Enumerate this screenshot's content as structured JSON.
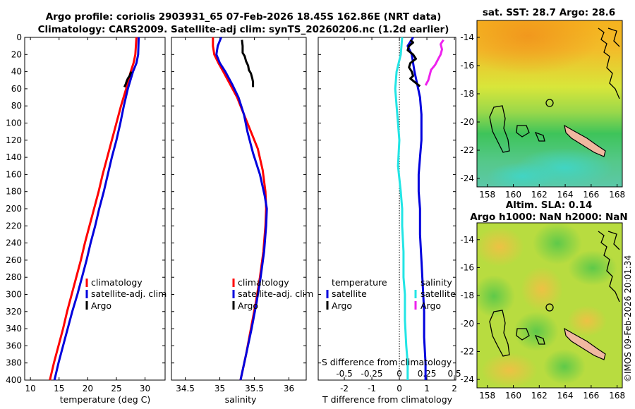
{
  "header": {
    "line1": "Argo profile: coriolis 2903931_65 07-Feb-2026 18.45S 162.86E (NRT data)",
    "line2": "Climatology: CARS2009. Satellite-adj clim: synTS_20260206.nc (1.2d earlier)"
  },
  "watermark": "©IMOS 09-Feb-2026 20:01:34",
  "colors": {
    "climatology": "#ff0000",
    "satellite": "#0000dd",
    "argo": "#000000",
    "t_satellite": "#22e5e5",
    "s_argo": "#ee22ee"
  },
  "chart_data": [
    {
      "type": "line",
      "name": "temperature",
      "xlabel": "temperature (deg C)",
      "ylabel": "",
      "xlim": [
        9,
        33.5
      ],
      "ylim": [
        400,
        0
      ],
      "xticks": [
        "10",
        "15",
        "20",
        "25",
        "30"
      ],
      "xtick_values": [
        10,
        15,
        20,
        25,
        30
      ],
      "yticks": [
        "0",
        "20",
        "40",
        "60",
        "80",
        "100",
        "120",
        "140",
        "160",
        "180",
        "200",
        "220",
        "240",
        "260",
        "280",
        "300",
        "320",
        "340",
        "360",
        "380",
        "400"
      ],
      "legend": {
        "placement": "bottom-right",
        "entries": [
          "climatology",
          "satellite-adj. clim",
          "Argo"
        ]
      },
      "series": [
        {
          "name": "climatology",
          "color": "#ff0000",
          "points": [
            [
              28.5,
              0
            ],
            [
              28.3,
              20
            ],
            [
              28.0,
              30
            ],
            [
              27.5,
              40
            ],
            [
              26.7,
              60
            ],
            [
              25.8,
              80
            ],
            [
              25.0,
              100
            ],
            [
              24.2,
              120
            ],
            [
              23.4,
              140
            ],
            [
              22.6,
              160
            ],
            [
              21.9,
              180
            ],
            [
              21.1,
              200
            ],
            [
              20.3,
              220
            ],
            [
              19.5,
              240
            ],
            [
              18.8,
              260
            ],
            [
              18.0,
              280
            ],
            [
              17.2,
              300
            ],
            [
              16.4,
              320
            ],
            [
              15.7,
              340
            ],
            [
              14.9,
              360
            ],
            [
              14.1,
              380
            ],
            [
              13.4,
              400
            ]
          ]
        },
        {
          "name": "satellite-adj. clim",
          "color": "#0000dd",
          "points": [
            [
              28.9,
              0
            ],
            [
              28.8,
              20
            ],
            [
              28.5,
              30
            ],
            [
              27.9,
              40
            ],
            [
              27.0,
              60
            ],
            [
              26.3,
              80
            ],
            [
              25.7,
              100
            ],
            [
              25.0,
              120
            ],
            [
              24.2,
              140
            ],
            [
              23.5,
              160
            ],
            [
              22.8,
              180
            ],
            [
              22.0,
              200
            ],
            [
              21.3,
              220
            ],
            [
              20.5,
              240
            ],
            [
              19.8,
              260
            ],
            [
              19.0,
              280
            ],
            [
              18.2,
              300
            ],
            [
              17.3,
              320
            ],
            [
              16.5,
              340
            ],
            [
              15.7,
              360
            ],
            [
              14.9,
              380
            ],
            [
              14.2,
              400
            ]
          ]
        },
        {
          "name": "Argo",
          "color": "#000000",
          "points": [
            [
              27.6,
              40
            ],
            [
              27.3,
              45
            ],
            [
              27.0,
              48
            ],
            [
              26.8,
              51
            ],
            [
              26.6,
              55
            ],
            [
              26.4,
              58
            ]
          ]
        }
      ]
    },
    {
      "type": "line",
      "name": "salinity",
      "xlabel": "salinity",
      "ylabel": "",
      "xlim": [
        34.3,
        36.25
      ],
      "ylim": [
        400,
        0
      ],
      "xticks": [
        "34.5",
        "35",
        "35.5",
        "36"
      ],
      "xtick_values": [
        34.5,
        35,
        35.5,
        36
      ],
      "legend": {
        "placement": "bottom-right",
        "entries": [
          "climatology",
          "satellite-adj. clim",
          "Argo"
        ]
      },
      "series": [
        {
          "name": "climatology",
          "color": "#ff0000",
          "points": [
            [
              34.9,
              0
            ],
            [
              34.9,
              10
            ],
            [
              34.92,
              20
            ],
            [
              34.98,
              30
            ],
            [
              35.05,
              40
            ],
            [
              35.15,
              55
            ],
            [
              35.25,
              70
            ],
            [
              35.35,
              90
            ],
            [
              35.45,
              110
            ],
            [
              35.55,
              130
            ],
            [
              35.62,
              155
            ],
            [
              35.66,
              180
            ],
            [
              35.67,
              200
            ],
            [
              35.66,
              220
            ],
            [
              35.63,
              250
            ],
            [
              35.58,
              280
            ],
            [
              35.52,
              310
            ],
            [
              35.45,
              340
            ],
            [
              35.38,
              370
            ],
            [
              35.3,
              400
            ]
          ]
        },
        {
          "name": "satellite-adj. clim",
          "color": "#0000dd",
          "points": [
            [
              35.02,
              0
            ],
            [
              34.97,
              10
            ],
            [
              34.95,
              20
            ],
            [
              35.0,
              30
            ],
            [
              35.08,
              40
            ],
            [
              35.18,
              55
            ],
            [
              35.27,
              70
            ],
            [
              35.35,
              90
            ],
            [
              35.4,
              110
            ],
            [
              35.48,
              135
            ],
            [
              35.58,
              160
            ],
            [
              35.65,
              185
            ],
            [
              35.68,
              200
            ],
            [
              35.67,
              220
            ],
            [
              35.64,
              250
            ],
            [
              35.59,
              280
            ],
            [
              35.53,
              310
            ],
            [
              35.46,
              340
            ],
            [
              35.38,
              370
            ],
            [
              35.3,
              400
            ]
          ]
        },
        {
          "name": "Argo",
          "color": "#000000",
          "points": [
            [
              35.32,
              3
            ],
            [
              35.33,
              10
            ],
            [
              35.33,
              18
            ],
            [
              35.36,
              22
            ],
            [
              35.38,
              28
            ],
            [
              35.41,
              33
            ],
            [
              35.42,
              38
            ],
            [
              35.45,
              42
            ],
            [
              35.47,
              48
            ],
            [
              35.48,
              52
            ],
            [
              35.48,
              58
            ]
          ]
        }
      ]
    },
    {
      "type": "line",
      "name": "differences",
      "xlabel": "T difference from climatology",
      "secondary_xlabel": "S difference from climatology",
      "xlim": [
        -2.95,
        2.05
      ],
      "ylim": [
        400,
        0
      ],
      "xticks": [
        "-2",
        "-1",
        "0",
        "1",
        "2"
      ],
      "xtick_values": [
        -2,
        -1,
        0,
        1,
        2
      ],
      "secondary_xticks": [
        "-0.5",
        "-0.25",
        "0",
        "0.25",
        "0.5"
      ],
      "secondary_xtick_values": [
        -0.5,
        -0.25,
        0,
        0.25,
        0.5
      ],
      "zero_line": true,
      "legend_temperature": {
        "title": "temperature",
        "entries": [
          "satellite",
          "Argo"
        ]
      },
      "legend_salinity": {
        "title": "salinity",
        "entries": [
          "satellite",
          "Argo"
        ]
      },
      "series": [
        {
          "name": "T satellite",
          "color": "#22e5e5",
          "axis": "T",
          "points": [
            [
              0.1,
              0
            ],
            [
              0.05,
              20
            ],
            [
              -0.1,
              40
            ],
            [
              -0.15,
              60
            ],
            [
              -0.1,
              80
            ],
            [
              -0.05,
              100
            ],
            [
              0.0,
              120
            ],
            [
              -0.05,
              150
            ],
            [
              0.05,
              180
            ],
            [
              0.1,
              200
            ],
            [
              0.1,
              220
            ],
            [
              0.15,
              250
            ],
            [
              0.15,
              280
            ],
            [
              0.2,
              300
            ],
            [
              0.2,
              330
            ],
            [
              0.25,
              360
            ],
            [
              0.3,
              380
            ],
            [
              0.3,
              400
            ]
          ]
        },
        {
          "name": "S satellite",
          "color": "#0000dd",
          "axis": "T",
          "points": [
            [
              0.5,
              0
            ],
            [
              0.3,
              10
            ],
            [
              0.45,
              20
            ],
            [
              0.5,
              30
            ],
            [
              0.55,
              40
            ],
            [
              0.65,
              55
            ],
            [
              0.75,
              70
            ],
            [
              0.8,
              90
            ],
            [
              0.8,
              120
            ],
            [
              0.75,
              140
            ],
            [
              0.7,
              160
            ],
            [
              0.7,
              180
            ],
            [
              0.75,
              200
            ],
            [
              0.75,
              230
            ],
            [
              0.8,
              260
            ],
            [
              0.85,
              290
            ],
            [
              0.9,
              320
            ],
            [
              0.9,
              350
            ],
            [
              0.95,
              380
            ],
            [
              0.95,
              400
            ]
          ]
        },
        {
          "name": "T Argo",
          "color": "#000000",
          "axis": "T",
          "points": [
            [
              0.4,
              3
            ],
            [
              0.5,
              6
            ],
            [
              0.35,
              10
            ],
            [
              0.3,
              15
            ],
            [
              0.5,
              20
            ],
            [
              0.6,
              25
            ],
            [
              0.4,
              30
            ],
            [
              0.35,
              35
            ],
            [
              0.45,
              40
            ],
            [
              0.5,
              45
            ],
            [
              0.4,
              48
            ],
            [
              0.55,
              52
            ],
            [
              0.75,
              57
            ]
          ]
        },
        {
          "name": "S Argo",
          "color": "#ee22ee",
          "axis": "T",
          "points": [
            [
              1.6,
              3
            ],
            [
              1.5,
              8
            ],
            [
              1.55,
              14
            ],
            [
              1.5,
              20
            ],
            [
              1.4,
              26
            ],
            [
              1.3,
              32
            ],
            [
              1.15,
              38
            ],
            [
              1.1,
              44
            ],
            [
              1.05,
              50
            ],
            [
              0.95,
              56
            ]
          ]
        }
      ]
    }
  ],
  "maps": {
    "sst": {
      "title": "sat. SST: 28.7 Argo: 28.6",
      "lon_ticks": [
        "158",
        "160",
        "162",
        "164",
        "166",
        "168"
      ],
      "lon_values": [
        158,
        160,
        162,
        164,
        166,
        168
      ],
      "lat_ticks": [
        "-14",
        "-16",
        "-18",
        "-20",
        "-22",
        "-24"
      ],
      "lat_values": [
        -14,
        -16,
        -18,
        -20,
        -22,
        -24
      ],
      "lon_range": [
        157.2,
        168.4
      ],
      "lat_range": [
        -24.6,
        -12.8
      ]
    },
    "sla": {
      "title1": "Altim. SLA: 0.14",
      "title2": "Argo h1000: NaN h2000: NaN",
      "lon_ticks": [
        "158",
        "160",
        "162",
        "164",
        "166",
        "168"
      ],
      "lon_values": [
        158,
        160,
        162,
        164,
        166,
        168
      ],
      "lat_ticks": [
        "-14",
        "-16",
        "-18",
        "-20",
        "-22",
        "-24"
      ],
      "lat_values": [
        -14,
        -16,
        -18,
        -20,
        -22,
        -24
      ],
      "lon_range": [
        157.2,
        168.4
      ],
      "lat_range": [
        -24.6,
        -12.8
      ]
    }
  }
}
